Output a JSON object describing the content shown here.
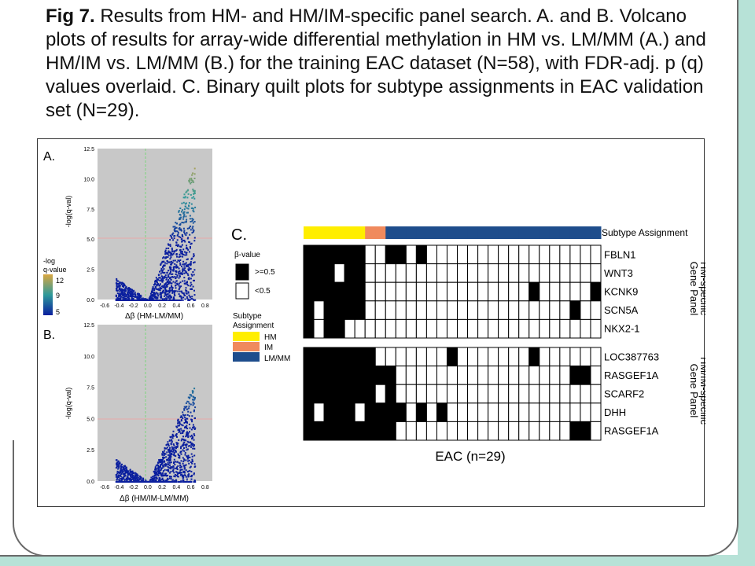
{
  "caption": {
    "fig_label": "Fig 7.",
    "text": " Results from HM- and HM/IM-specific panel search. A. and B. Volcano plots of results for array-wide differential methylation in HM vs. LM/MM (A.) and HM/IM vs. LM/MM (B.) for the training EAC dataset (N=58), with FDR-adj. p (q) values overlaid. C. Binary quilt plots for subtype assignments in EAC validation set (N=29)."
  },
  "panel_a": {
    "label": "A.",
    "ylabel": "-log(q-val)",
    "xlabel": "Δβ (HM-LM/MM)",
    "y_ticks": [
      "12.5",
      "10.0",
      "7.5",
      "5.0",
      "2.5",
      "0.0"
    ],
    "x_ticks": [
      "-0.6",
      "-0.4",
      "-0.2",
      "0.0",
      "0.2",
      "0.4",
      "0.6",
      "0.8"
    ]
  },
  "panel_b": {
    "label": "B.",
    "ylabel": "-log(q-val)",
    "xlabel": "Δβ (HM/IM-LM/MM)",
    "y_ticks": [
      "12.5",
      "10.0",
      "7.5",
      "5.0",
      "2.5",
      "0.0"
    ],
    "x_ticks": [
      "-0.6",
      "-0.4",
      "-0.2",
      "0.0",
      "0.2",
      "0.4",
      "0.6",
      "0.8"
    ]
  },
  "colorbar": {
    "title_line1": "-log",
    "title_line2": "q-value",
    "ticks": [
      "12",
      "9",
      "5"
    ],
    "colors": {
      "low": "#0a1f9e",
      "mid": "#2e9a9a",
      "high": "#d9a640"
    }
  },
  "panel_c": {
    "label": "C.",
    "beta_legend": {
      "title": "β-value",
      "items": [
        "&gt;=0.5",
        "&lt;0.5"
      ]
    },
    "subtype_legend": {
      "title_line1": "Subtype",
      "title_line2": "Assignment",
      "items": [
        {
          "label": "HM",
          "color": "#ffee00"
        },
        {
          "label": "IM",
          "color": "#f08a5d"
        },
        {
          "label": "LM/MM",
          "color": "#1e4d8c"
        }
      ]
    },
    "subtype_bar_label": "Subtype Assignment",
    "group_labels": [
      "HM-specific Gene Panel",
      "HM/IM-specific Gene Panel"
    ],
    "xlabel": "EAC (n=29)"
  },
  "chart_data": {
    "type": "heatmap",
    "title": "",
    "n_samples": 29,
    "subtype_assignment": [
      "HM",
      "HM",
      "HM",
      "HM",
      "HM",
      "HM",
      "IM",
      "IM",
      "LM/MM",
      "LM/MM",
      "LM/MM",
      "LM/MM",
      "LM/MM",
      "LM/MM",
      "LM/MM",
      "LM/MM",
      "LM/MM",
      "LM/MM",
      "LM/MM",
      "LM/MM",
      "LM/MM",
      "LM/MM",
      "LM/MM",
      "LM/MM",
      "LM/MM",
      "LM/MM",
      "LM/MM",
      "LM/MM",
      "LM/MM"
    ],
    "panels": [
      {
        "name": "HM-specific Gene Panel",
        "genes": [
          {
            "name": "FBLN1",
            "values": [
              1,
              1,
              1,
              1,
              1,
              1,
              0,
              0,
              1,
              1,
              0,
              1,
              0,
              0,
              0,
              0,
              0,
              0,
              0,
              0,
              0,
              0,
              0,
              0,
              0,
              0,
              0,
              0,
              0
            ]
          },
          {
            "name": "WNT3",
            "values": [
              1,
              1,
              1,
              0,
              1,
              1,
              0,
              0,
              0,
              0,
              0,
              0,
              0,
              0,
              0,
              0,
              0,
              0,
              0,
              0,
              0,
              0,
              0,
              0,
              0,
              0,
              0,
              0,
              0
            ]
          },
          {
            "name": "KCNK9",
            "values": [
              1,
              1,
              1,
              1,
              1,
              1,
              0,
              0,
              0,
              0,
              0,
              0,
              0,
              0,
              0,
              0,
              0,
              0,
              0,
              0,
              0,
              0,
              1,
              0,
              0,
              0,
              0,
              0,
              1
            ]
          },
          {
            "name": "SCN5A",
            "values": [
              1,
              0,
              1,
              1,
              1,
              1,
              0,
              0,
              0,
              0,
              0,
              0,
              0,
              0,
              0,
              0,
              0,
              0,
              0,
              0,
              0,
              0,
              0,
              0,
              0,
              0,
              1,
              0,
              0
            ]
          },
          {
            "name": "NKX2-1",
            "values": [
              1,
              0,
              1,
              1,
              0,
              0,
              0,
              0,
              0,
              0,
              0,
              0,
              0,
              0,
              0,
              0,
              0,
              0,
              0,
              0,
              0,
              0,
              0,
              0,
              0,
              0,
              0,
              0,
              0
            ]
          }
        ]
      },
      {
        "name": "HM/IM-specific Gene Panel",
        "genes": [
          {
            "name": "LOC387763",
            "values": [
              1,
              1,
              1,
              1,
              1,
              1,
              1,
              0,
              0,
              0,
              0,
              0,
              0,
              0,
              1,
              0,
              0,
              0,
              0,
              0,
              0,
              0,
              1,
              0,
              0,
              0,
              0,
              0,
              0
            ]
          },
          {
            "name": "RASGEF1A",
            "values": [
              1,
              1,
              1,
              1,
              1,
              1,
              1,
              1,
              1,
              0,
              0,
              0,
              0,
              0,
              0,
              0,
              0,
              0,
              0,
              0,
              0,
              0,
              0,
              0,
              0,
              0,
              1,
              1,
              0
            ]
          },
          {
            "name": "SCARF2",
            "values": [
              1,
              1,
              1,
              1,
              1,
              1,
              1,
              0,
              1,
              0,
              0,
              0,
              0,
              0,
              0,
              0,
              0,
              0,
              0,
              0,
              0,
              0,
              0,
              0,
              0,
              0,
              0,
              0,
              0
            ]
          },
          {
            "name": "DHH",
            "values": [
              1,
              0,
              1,
              1,
              1,
              0,
              1,
              1,
              1,
              1,
              0,
              1,
              0,
              1,
              0,
              0,
              0,
              0,
              0,
              0,
              0,
              0,
              0,
              0,
              0,
              0,
              0,
              0,
              0
            ]
          },
          {
            "name": "RASGEF1A",
            "values": [
              1,
              1,
              1,
              1,
              1,
              1,
              1,
              1,
              1,
              0,
              0,
              0,
              0,
              0,
              0,
              0,
              0,
              0,
              0,
              0,
              0,
              0,
              0,
              0,
              0,
              0,
              1,
              1,
              0
            ]
          }
        ]
      }
    ]
  }
}
